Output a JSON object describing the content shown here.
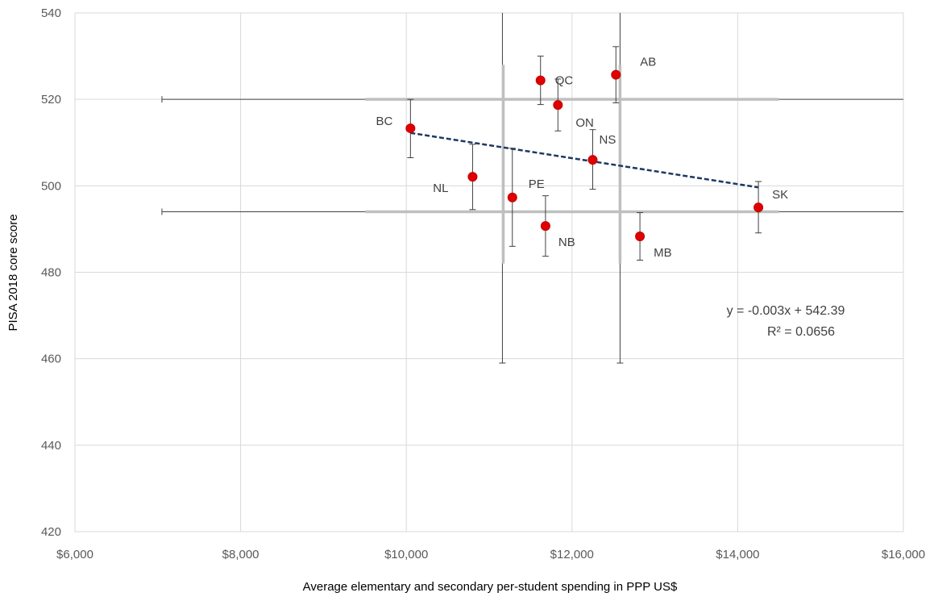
{
  "chart_data": {
    "type": "scatter",
    "xlabel": "Average elementary and secondary per-student spending in PPP US$",
    "ylabel": "PISA 2018 core score",
    "xlim": [
      6000,
      16000
    ],
    "ylim": [
      420,
      540
    ],
    "x_ticks": [
      6000,
      8000,
      10000,
      12000,
      14000,
      16000
    ],
    "x_tick_labels": [
      "$6,000",
      "$8,000",
      "$10,000",
      "$12,000",
      "$14,000",
      "$16,000"
    ],
    "y_ticks": [
      420,
      440,
      460,
      480,
      500,
      520,
      540
    ],
    "y_tick_labels": [
      "420",
      "440",
      "460",
      "480",
      "500",
      "520",
      "540"
    ],
    "grid": true,
    "point_color": "#e00000",
    "trend_color": "#1f3864",
    "points": [
      {
        "label": "BC",
        "x": 10050,
        "y": 513.3,
        "y_err_low": 6.8,
        "y_err_high": 6.7
      },
      {
        "label": "NL",
        "x": 10800,
        "y": 502.1,
        "y_err_low": 7.6,
        "y_err_high": 7.5
      },
      {
        "label": "PE",
        "x": 11280,
        "y": 497.3,
        "y_err_low": 11.3,
        "y_err_high": 11.4
      },
      {
        "label": "QC",
        "x": 11620,
        "y": 524.4,
        "y_err_low": 5.6,
        "y_err_high": 5.6
      },
      {
        "label": "NB",
        "x": 11680,
        "y": 490.7,
        "y_err_low": 7.0,
        "y_err_high": 7.0
      },
      {
        "label": "ON",
        "x": 11830,
        "y": 518.7,
        "y_err_low": 6.0,
        "y_err_high": 6.0
      },
      {
        "label": "NS",
        "x": 12250,
        "y": 506.0,
        "y_err_low": 6.8,
        "y_err_high": 7.0
      },
      {
        "label": "AB",
        "x": 12530,
        "y": 525.7,
        "y_err_low": 6.5,
        "y_err_high": 6.5
      },
      {
        "label": "MB",
        "x": 12820,
        "y": 488.3,
        "y_err_low": 5.5,
        "y_err_high": 5.5
      },
      {
        "label": "SK",
        "x": 14250,
        "y": 495.0,
        "y_err_low": 5.9,
        "y_err_high": 6.0
      }
    ],
    "mean_lines": {
      "x_values": [
        11170,
        12580
      ],
      "x_range": [
        9500,
        14500
      ],
      "y_values": [
        494,
        520
      ],
      "y_range": [
        482,
        528
      ]
    },
    "reference_lines": {
      "horizontal": {
        "y_values": [
          494,
          520
        ],
        "x_range": [
          7050,
          16000
        ]
      },
      "vertical": {
        "x_values": [
          11160,
          12580
        ],
        "y_range": [
          459,
          540
        ]
      }
    },
    "trendline": {
      "x_range": [
        10050,
        14250
      ],
      "slope": -0.003,
      "intercept": 542.39
    },
    "equation": "y = -0.003x + 542.39",
    "r_squared": "R² = 0.0656"
  }
}
